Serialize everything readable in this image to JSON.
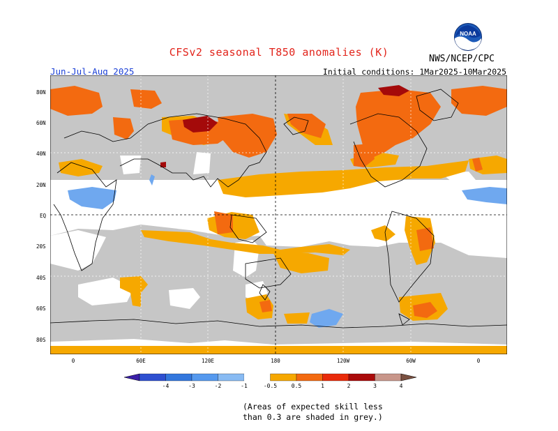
{
  "title": "CFSv2 seasonal T850 anomalies (K)",
  "season": "Jun-Jul-Aug 2025",
  "initial_conditions": "Initial conditions: 1Mar2025-10Mar2025",
  "agency": "NWS/NCEP/CPC",
  "logo_text": "NOAA",
  "lat_labels": [
    "80N",
    "60N",
    "40N",
    "20N",
    "EQ",
    "20S",
    "40S",
    "60S",
    "80S"
  ],
  "lon_labels": [
    "0",
    "60E",
    "120E",
    "180",
    "120W",
    "60W",
    "0"
  ],
  "colorbar": {
    "ticks": [
      "-4",
      "-3",
      "-2",
      "-1",
      "-0.5",
      "0.5",
      "1",
      "2",
      "3",
      "4"
    ],
    "colors": [
      "#3a1fa8",
      "#2e4fd0",
      "#3377dd",
      "#5599ee",
      "#88bbf3",
      "#ffffff",
      "#f6a800",
      "#f36a10",
      "#e92a0a",
      "#aa0a0a",
      "#c8968a",
      "#7a5040"
    ]
  },
  "footnote_line1": "(Areas of expected skill less",
  "footnote_line2": "than 0.3 are shaded in grey.)"
}
